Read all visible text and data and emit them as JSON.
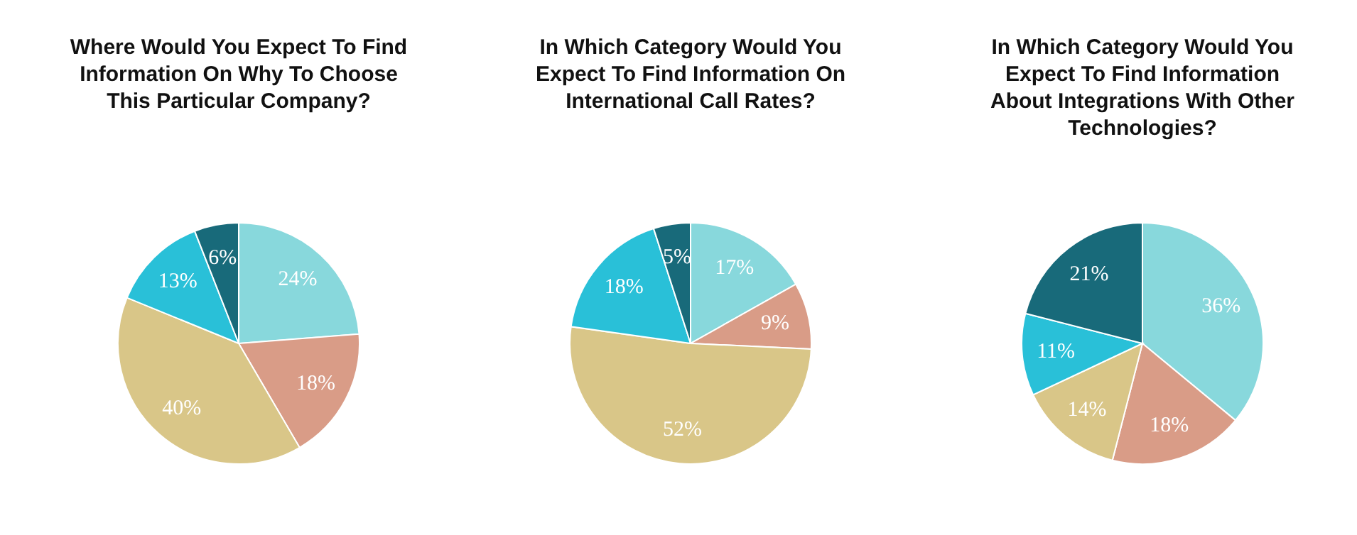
{
  "chart_data": [
    {
      "type": "pie",
      "title": "Where Would You Expect To Find Information On Why To Choose This Particular Company?",
      "categories": [
        null,
        null,
        null,
        null,
        null
      ],
      "values": [
        24,
        18,
        40,
        13,
        6
      ],
      "value_labels": [
        "24%",
        "18%",
        "40%",
        "13%",
        "6%"
      ],
      "colors": [
        "#88d8dc",
        "#d99c87",
        "#d9c688",
        "#29c0d8",
        "#186a7a"
      ]
    },
    {
      "type": "pie",
      "title": "In Which Category Would You Expect To Find Information On International Call Rates?",
      "categories": [
        null,
        null,
        null,
        null,
        null
      ],
      "values": [
        17,
        9,
        52,
        18,
        5
      ],
      "value_labels": [
        "17%",
        "9%",
        "52%",
        "18%",
        "5%"
      ],
      "colors": [
        "#88d8dc",
        "#d99c87",
        "#d9c688",
        "#29c0d8",
        "#186a7a"
      ]
    },
    {
      "type": "pie",
      "title": "In Which Category Would You Expect To Find Information About Integrations With Other Technologies?",
      "categories": [
        null,
        null,
        null,
        null,
        null
      ],
      "values": [
        36,
        18,
        14,
        11,
        21
      ],
      "value_labels": [
        "36%",
        "18%",
        "14%",
        "11%",
        "21%"
      ],
      "colors": [
        "#88d8dc",
        "#d99c87",
        "#d9c688",
        "#29c0d8",
        "#186a7a"
      ]
    }
  ]
}
